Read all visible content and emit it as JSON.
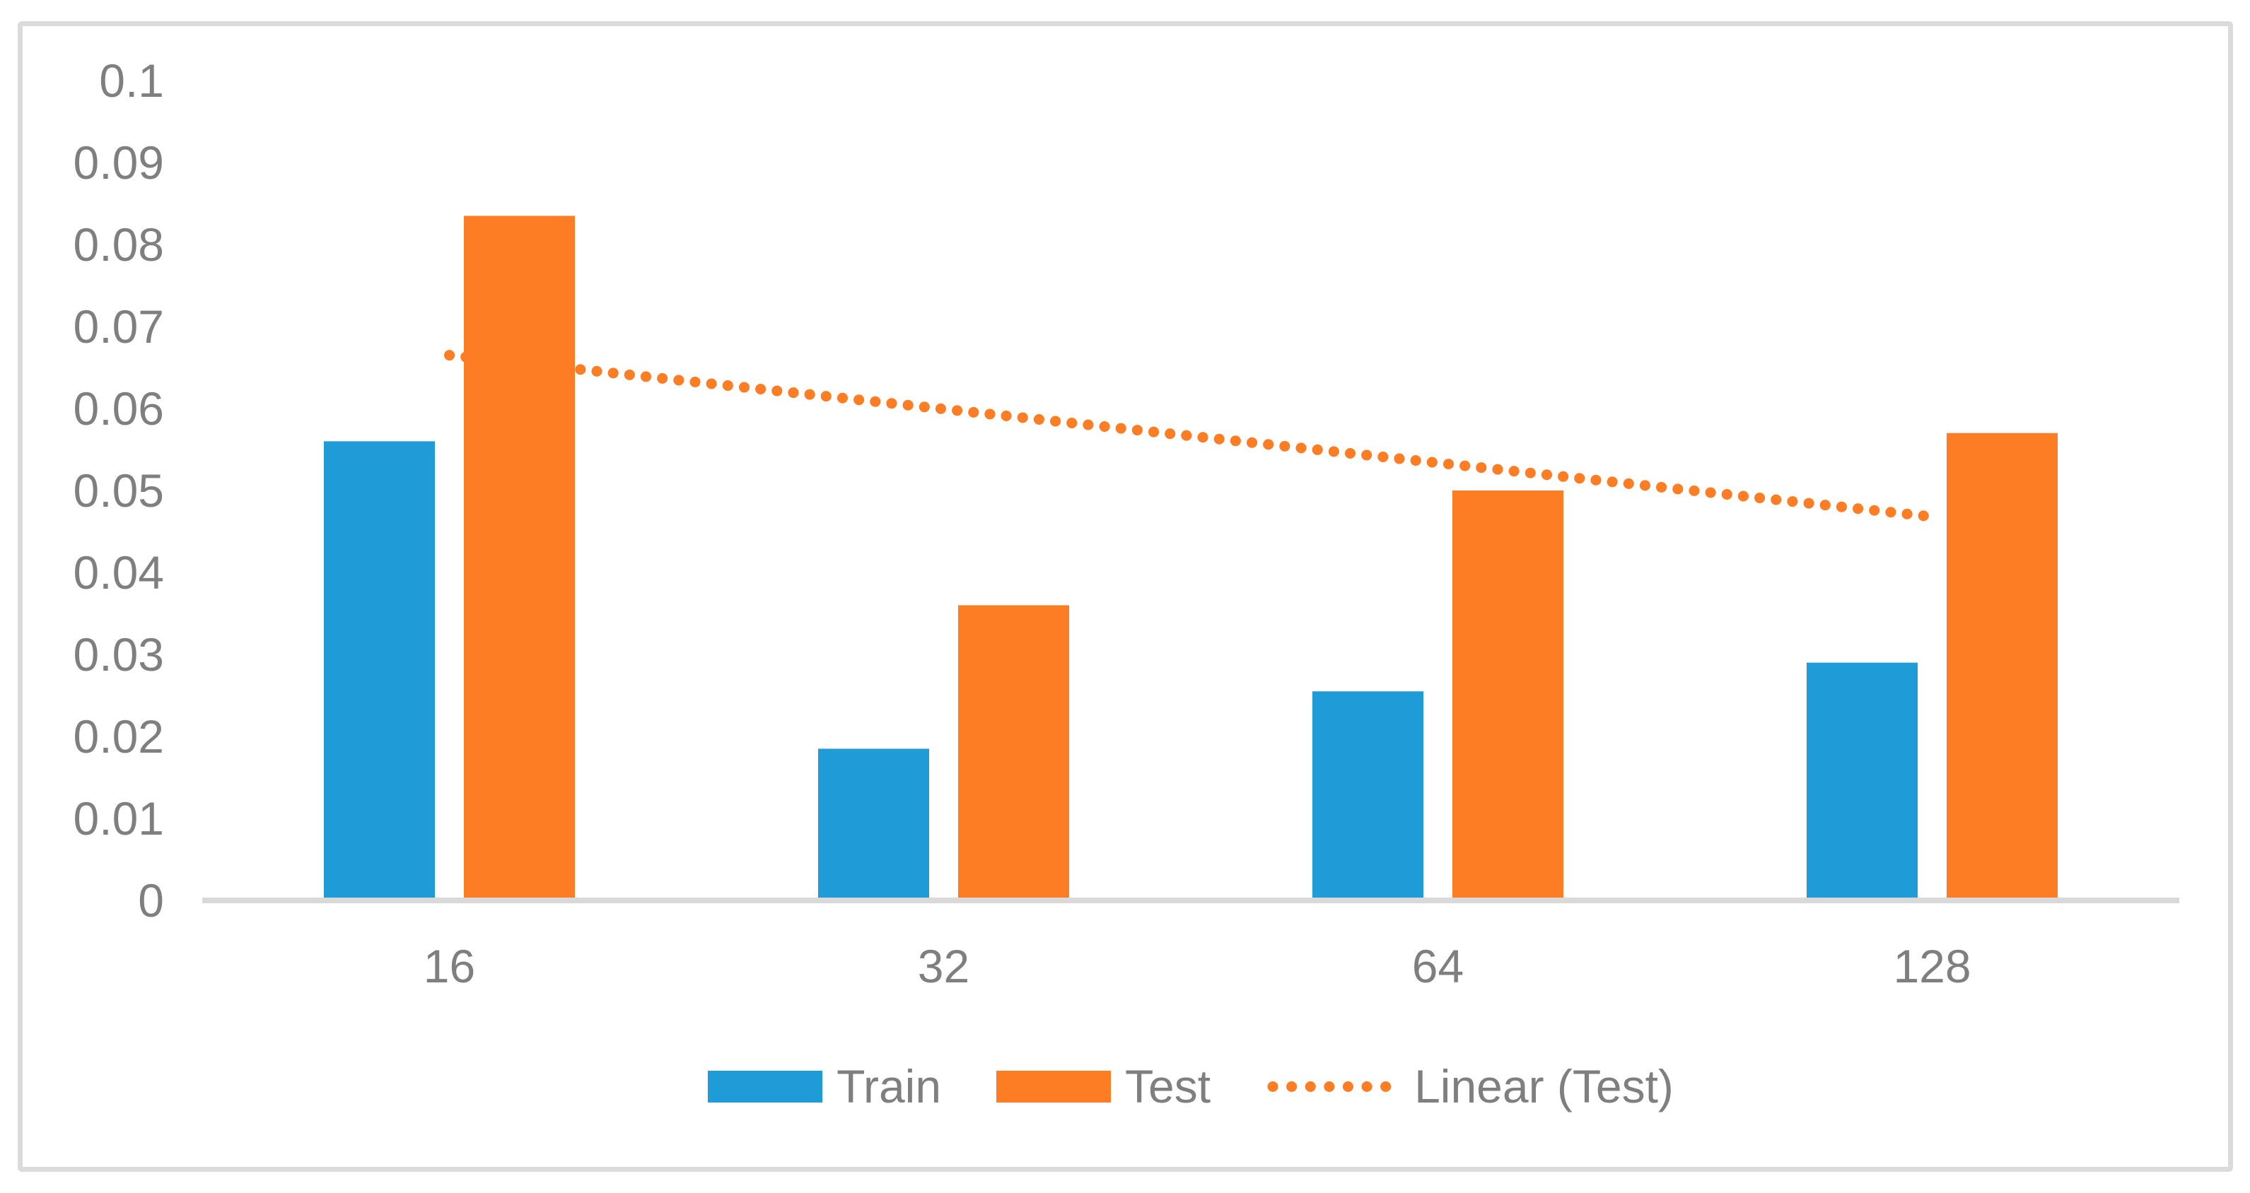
{
  "chart_data": {
    "type": "bar",
    "title": "",
    "xlabel": "",
    "ylabel": "",
    "categories": [
      "16",
      "32",
      "64",
      "128"
    ],
    "series": [
      {
        "name": "Train",
        "color": "#1F9CD8",
        "values": [
          0.056,
          0.0185,
          0.0255,
          0.029
        ]
      },
      {
        "name": "Test",
        "color": "#FC7D23",
        "values": [
          0.0835,
          0.036,
          0.05,
          0.057
        ]
      }
    ],
    "trendline": {
      "name": "Linear (Test)",
      "color": "#FC7D23",
      "style": "dotted",
      "start_value": 0.0665,
      "end_value": 0.0468,
      "from_category_index": 0,
      "to_category_index": 3
    },
    "ylim": [
      0,
      0.1
    ],
    "ytick_step": 0.01,
    "ytick_labels": [
      "0",
      "0.01",
      "0.02",
      "0.03",
      "0.04",
      "0.05",
      "0.06",
      "0.07",
      "0.08",
      "0.09",
      "0.1"
    ],
    "grid": false,
    "legend_position": "bottom",
    "axis_color": "#D9D9D9",
    "label_color": "#7F7F7F"
  }
}
